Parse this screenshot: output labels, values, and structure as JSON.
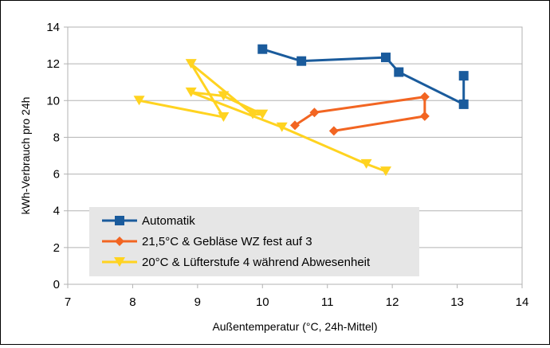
{
  "chart_data": {
    "type": "line",
    "xlabel": "Außentemperatur (°C, 24h-Mittel)",
    "ylabel": "kWh-Verbrauch pro 24h",
    "xlim": [
      7,
      14
    ],
    "ylim": [
      0,
      14
    ],
    "x_ticks": [
      7,
      8,
      9,
      10,
      11,
      12,
      13,
      14
    ],
    "y_ticks": [
      0,
      2,
      4,
      6,
      8,
      10,
      12,
      14
    ],
    "grid": "horizontal",
    "legend_position": "bottom-left",
    "series": [
      {
        "name": "Automatik",
        "color": "#1a5b9c",
        "marker": "square",
        "points": [
          [
            10.0,
            12.8
          ],
          [
            10.6,
            12.15
          ],
          [
            11.9,
            12.35
          ],
          [
            12.1,
            11.55
          ],
          [
            13.1,
            9.8
          ],
          [
            13.1,
            11.35
          ]
        ]
      },
      {
        "name": "21,5°C & Gebläse WZ fest auf 3",
        "color": "#f26522",
        "marker": "diamond",
        "points": [
          [
            11.1,
            8.35
          ],
          [
            12.5,
            9.15
          ],
          [
            12.5,
            10.2
          ],
          [
            10.8,
            9.35
          ],
          [
            10.5,
            8.65
          ]
        ]
      },
      {
        "name": "20°C & Lüfterstufe 4 während Abwesenheit",
        "color": "#ffd320",
        "marker": "triangle-down",
        "points": [
          [
            8.1,
            10.0
          ],
          [
            9.4,
            9.1
          ],
          [
            8.9,
            12.0
          ],
          [
            9.85,
            9.25
          ],
          [
            10.0,
            9.25
          ],
          [
            9.4,
            10.25
          ],
          [
            8.9,
            10.45
          ],
          [
            10.3,
            8.55
          ],
          [
            11.6,
            6.55
          ],
          [
            11.9,
            6.15
          ]
        ]
      }
    ]
  }
}
